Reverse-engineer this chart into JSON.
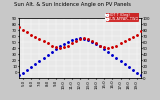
{
  "title": "Sun Alt. & Sun Incidence Angle on PV Panels",
  "legend_labels": [
    "HOT T (Deg)",
    "SUN APPAR. TWO"
  ],
  "legend_colors": [
    "#0000cc",
    "#cc0000"
  ],
  "x_hours": [
    4.5,
    5.0,
    5.5,
    6.0,
    6.5,
    7.0,
    7.5,
    8.0,
    8.5,
    9.0,
    9.5,
    10.0,
    10.5,
    11.0,
    11.5,
    12.0,
    12.5,
    13.0,
    13.5,
    14.0,
    14.5,
    15.0,
    15.5,
    16.0,
    16.5,
    17.0,
    17.5,
    18.0,
    18.5,
    19.0,
    19.5
  ],
  "sun_altitude": [
    -5,
    -1,
    4,
    9,
    14,
    19,
    24,
    29,
    34,
    39,
    43,
    47,
    50,
    53,
    55,
    56,
    55,
    53,
    50,
    47,
    43,
    39,
    34,
    29,
    24,
    19,
    14,
    9,
    4,
    -1,
    -5
  ],
  "sun_incidence": [
    85,
    80,
    76,
    71,
    68,
    65,
    62,
    58,
    54,
    51,
    50,
    51,
    54,
    58,
    62,
    65,
    67,
    65,
    62,
    58,
    54,
    51,
    50,
    51,
    54,
    58,
    62,
    65,
    68,
    72,
    78
  ],
  "xlim": [
    4.5,
    19.5
  ],
  "ylim_left": [
    -10,
    90
  ],
  "ylim_right": [
    0,
    100
  ],
  "xtick_positions": [
    5.0,
    6.0,
    7.0,
    8.0,
    9.0,
    10.0,
    11.0,
    12.0,
    13.0,
    14.0,
    15.0,
    16.0,
    17.0,
    18.0,
    19.0
  ],
  "xtick_labels": [
    "5:0",
    "6:0",
    "7:0",
    "8:0",
    "9:0",
    "10:0",
    "11:0",
    "12:0",
    "13:0",
    "14:0",
    "15:0",
    "16:0",
    "17:0",
    "18:0",
    "19:0"
  ],
  "ytick_left": [
    0,
    10,
    20,
    30,
    40,
    50,
    60,
    70,
    80,
    90
  ],
  "ytick_right": [
    0,
    10,
    20,
    30,
    40,
    50,
    60,
    70,
    80,
    90,
    100
  ],
  "bg_color": "#c8c8c8",
  "plot_bg_color": "#e8e8e8",
  "grid_color": "#ffffff",
  "title_fontsize": 3.8,
  "tick_fontsize": 2.8,
  "legend_fontsize": 2.5,
  "dot_size": 1.2
}
